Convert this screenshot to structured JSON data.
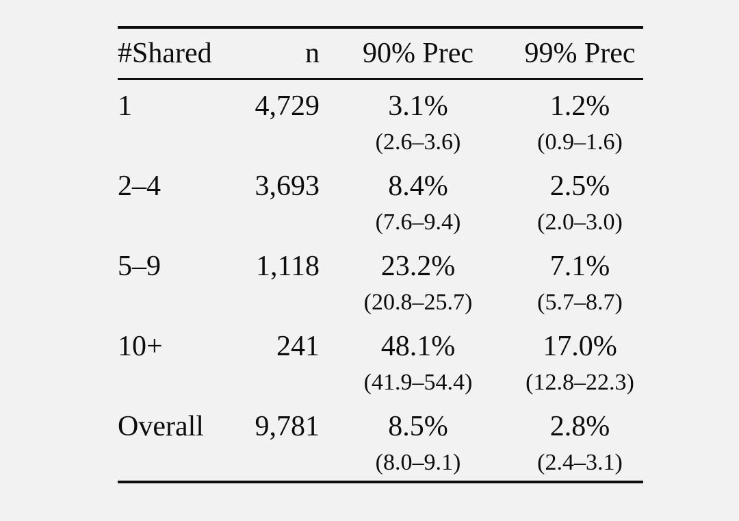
{
  "page": {
    "background_color": "#f2f2f2",
    "text_color": "#0d0d0d",
    "rule_color": "#0d0d0d"
  },
  "table": {
    "columns": {
      "shared": "#Shared",
      "n": "n",
      "prec90": "90% Prec",
      "prec99": "99% Prec"
    },
    "rows": [
      {
        "shared": "1",
        "n": "4,729",
        "prec90": {
          "value": "3.1%",
          "ci": "(2.6–3.6)"
        },
        "prec99": {
          "value": "1.2%",
          "ci": "(0.9–1.6)"
        }
      },
      {
        "shared": "2–4",
        "n": "3,693",
        "prec90": {
          "value": "8.4%",
          "ci": "(7.6–9.4)"
        },
        "prec99": {
          "value": "2.5%",
          "ci": "(2.0–3.0)"
        }
      },
      {
        "shared": "5–9",
        "n": "1,118",
        "prec90": {
          "value": "23.2%",
          "ci": "(20.8–25.7)"
        },
        "prec99": {
          "value": "7.1%",
          "ci": "(5.7–8.7)"
        }
      },
      {
        "shared": "10+",
        "n": "241",
        "prec90": {
          "value": "48.1%",
          "ci": "(41.9–54.4)"
        },
        "prec99": {
          "value": "17.0%",
          "ci": "(12.8–22.3)"
        }
      },
      {
        "shared": "Overall",
        "n": "9,781",
        "prec90": {
          "value": "8.5%",
          "ci": "(8.0–9.1)"
        },
        "prec99": {
          "value": "2.8%",
          "ci": "(2.4–3.1)"
        }
      }
    ]
  }
}
